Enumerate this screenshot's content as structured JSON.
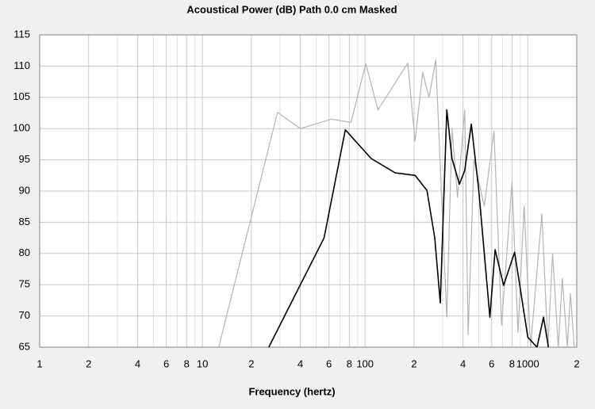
{
  "chart_data": {
    "type": "line",
    "title": "Acoustical Power (dB)    Path 0.0 cm    Masked",
    "xlabel": "Frequency (hertz)",
    "xscale": "log",
    "xlim": [
      1,
      2000
    ],
    "ylim": [
      65,
      115
    ],
    "yticks": [
      65,
      70,
      75,
      80,
      85,
      90,
      95,
      100,
      105,
      110,
      115
    ],
    "xticks": [
      1,
      2,
      4,
      6,
      8,
      10,
      {
        "value": 20,
        "label": "2"
      },
      {
        "value": 40,
        "label": "4"
      },
      {
        "value": 60,
        "label": "6"
      },
      {
        "value": 80,
        "label": "8"
      },
      100,
      {
        "value": 200,
        "label": "2"
      },
      {
        "value": 400,
        "label": "4"
      },
      {
        "value": 600,
        "label": "6"
      },
      {
        "value": 800,
        "label": "8"
      },
      1000,
      {
        "value": 2000,
        "label": "2"
      }
    ],
    "xminor": [
      3,
      5,
      7,
      9,
      30,
      50,
      70,
      90,
      300,
      500,
      700,
      900
    ],
    "grid": true,
    "series": [
      {
        "color": "#b4b4b4",
        "x": [
          12.6,
          29,
          40,
          62,
          82,
          101,
          120,
          183,
          203,
          226,
          247,
          272,
          300,
          318,
          342,
          370,
          410,
          430,
          467,
          540,
          620,
          690,
          800,
          870,
          950,
          1040,
          1220,
          1330,
          1420,
          1540,
          1630,
          1750,
          1830,
          1930
        ],
        "values": [
          65,
          102.6,
          100,
          101.5,
          101,
          110.4,
          103,
          110.5,
          98,
          109,
          105,
          111,
          85,
          69.8,
          100,
          89,
          103,
          67,
          95,
          87.6,
          99.6,
          68.5,
          91.4,
          67.3,
          87.6,
          65,
          86.3,
          65,
          80,
          65,
          76,
          65,
          73.6,
          65
        ]
      },
      {
        "color": "#000000",
        "x": [
          25.6,
          56,
          75.6,
          109,
          153,
          203,
          240,
          268,
          290,
          318,
          342,
          380,
          410,
          450,
          500,
          585,
          630,
          710,
          830,
          1000,
          1140,
          1250,
          1340
        ],
        "values": [
          65,
          82.5,
          99.8,
          95.2,
          92.9,
          92.5,
          90.1,
          82.5,
          72.1,
          103,
          95.2,
          91.1,
          93.3,
          100.7,
          90.1,
          69.8,
          80.6,
          74.9,
          80.2,
          66.6,
          65,
          69.8,
          65
        ]
      }
    ]
  }
}
